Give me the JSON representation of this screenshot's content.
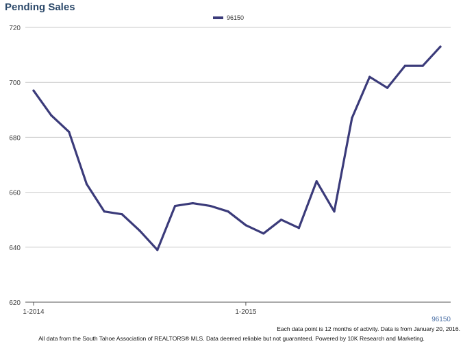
{
  "chart_data": {
    "type": "line",
    "title": "Pending Sales",
    "legend_position": "top-center",
    "grid": true,
    "ylim": [
      620,
      720
    ],
    "yticks": [
      620,
      640,
      660,
      680,
      700,
      720
    ],
    "xticks": [
      {
        "index": 0,
        "label": "1-2014"
      },
      {
        "index": 12,
        "label": "1-2015"
      }
    ],
    "series": [
      {
        "name": "96150",
        "color": "#3b3b7a",
        "values": [
          697,
          688,
          682,
          663,
          653,
          652,
          646,
          639,
          655,
          656,
          655,
          653,
          648,
          645,
          650,
          647,
          664,
          653,
          687,
          702,
          698,
          706,
          706,
          713
        ]
      }
    ]
  },
  "series_label": "96150",
  "note": "Each data point is 12 months of activity. Data is from January 20, 2016.",
  "footer": "All data from the South Tahoe Association of REALTORS® MLS. Data deemed reliable but not guaranteed. Powered by 10K Research and Marketing."
}
